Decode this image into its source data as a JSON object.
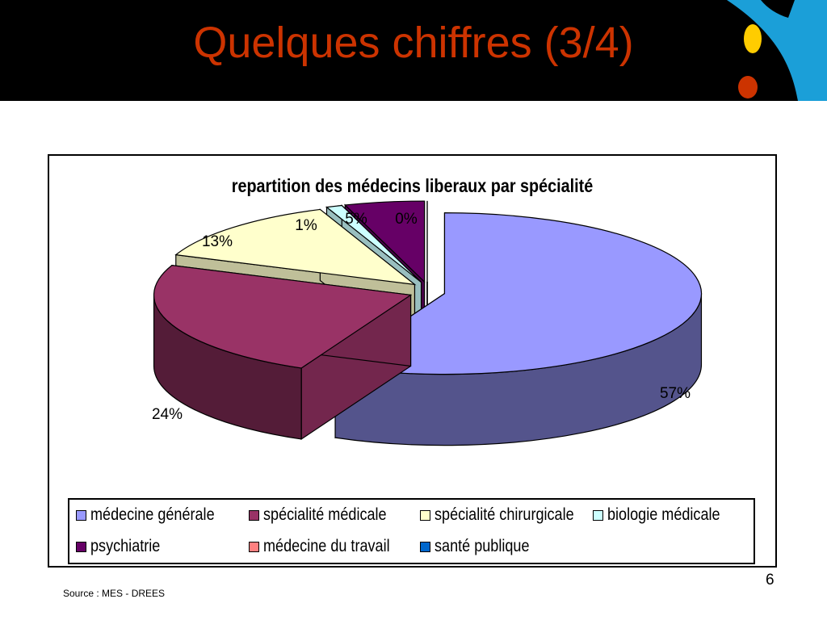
{
  "slide": {
    "title": "Quelques chiffres (3/4)",
    "page_number": "6",
    "source": "Source : MES - DREES"
  },
  "colors": {
    "title": "#cc3300",
    "header_bg": "#000000"
  },
  "chart_data": {
    "type": "pie",
    "style": "3d-exploded",
    "title": "repartition des médecins liberaux par spécialité",
    "legend_position": "bottom",
    "slices": [
      {
        "name": "médecine générale",
        "value": 57,
        "label": "57%",
        "color": "#9999ff"
      },
      {
        "name": "spécialité médicale",
        "value": 24,
        "label": "24%",
        "color": "#993366"
      },
      {
        "name": "spécialité chirurgicale",
        "value": 13,
        "label": "13%",
        "color": "#ffffcc"
      },
      {
        "name": "biologie médicale",
        "value": 1,
        "label": "1%",
        "color": "#ccffff"
      },
      {
        "name": "psychiatrie",
        "value": 5,
        "label": "5%",
        "color": "#660066"
      },
      {
        "name": "médecine du travail",
        "value": 0,
        "label": "0%",
        "color": "#ff8080"
      },
      {
        "name": "santé publique",
        "value": 0,
        "label": "",
        "color": "#0066cc"
      }
    ]
  }
}
